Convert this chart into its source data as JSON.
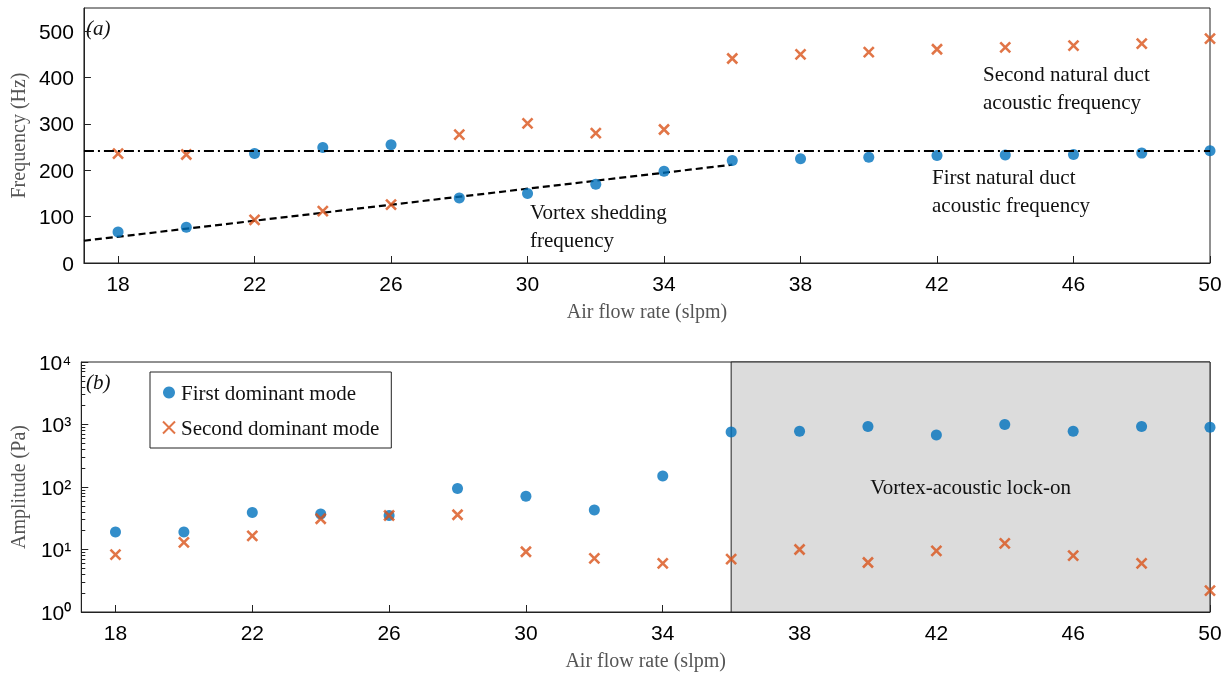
{
  "chart_data": [
    {
      "type": "scatter",
      "xlabel": "Air flow rate (slpm)",
      "ylabel": "Frequency (Hz)",
      "x": [
        18,
        20,
        22,
        24,
        26,
        28,
        30,
        32,
        34,
        36,
        38,
        40,
        42,
        44,
        46,
        48,
        50
      ],
      "xlim": [
        17,
        50
      ],
      "xticks": [
        18,
        22,
        26,
        30,
        34,
        38,
        42,
        46,
        50
      ],
      "ylim": [
        0,
        550
      ],
      "yticks": [
        0,
        100,
        200,
        300,
        400,
        500
      ],
      "grid": false,
      "legend": false,
      "series": [
        {
          "color": "#0072bd",
          "marker": "circle",
          "values": [
            67,
            77,
            236,
            249,
            255,
            140,
            150,
            170,
            198,
            221,
            225,
            228,
            232,
            233,
            234,
            237,
            242
          ]
        },
        {
          "color": "#d95319",
          "marker": "cross",
          "values": [
            236,
            234,
            93,
            112,
            126,
            277,
            301,
            280,
            288,
            441,
            450,
            455,
            461,
            465,
            469,
            473,
            484
          ]
        },
        {
          "type": "line",
          "color": "#000000",
          "marker": "none",
          "line_style": "dashed",
          "x": [
            17,
            36
          ],
          "values": [
            48,
            212
          ]
        }
      ],
      "ref_lines": [
        {
          "axis": "y",
          "value": 243,
          "color": "#000000",
          "line_style": "dashdot"
        }
      ],
      "annotations": [
        "(a)",
        "Vortex shedding\nfrequency",
        "First natural duct\nacoustic frequency",
        "Second natural duct\nacoustic frequency"
      ]
    },
    {
      "type": "scatter",
      "xlabel": "Air flow rate (slpm)",
      "ylabel": "Amplitude (Pa)",
      "x": [
        18,
        20,
        22,
        24,
        26,
        28,
        30,
        32,
        34,
        36,
        38,
        40,
        42,
        44,
        46,
        48,
        50
      ],
      "xlim": [
        17,
        50
      ],
      "xticks": [
        18,
        22,
        26,
        30,
        34,
        38,
        42,
        46,
        50
      ],
      "log": "y",
      "ylim": [
        1,
        10000
      ],
      "yticks": [
        {
          "value": 1,
          "label": "10⁰"
        },
        {
          "value": 10,
          "label": "10¹"
        },
        {
          "value": 100,
          "label": "10²"
        },
        {
          "value": 1000,
          "label": "10³"
        },
        {
          "value": 10000,
          "label": "10⁴"
        }
      ],
      "grid": false,
      "legend": "top left",
      "series": [
        {
          "name": "First dominant mode",
          "color": "#0072bd",
          "marker": "circle",
          "values": [
            19,
            19,
            39,
            37,
            35,
            95,
            71,
            43,
            150,
            760,
            780,
            930,
            680,
            1000,
            780,
            930,
            900
          ]
        },
        {
          "name": "Second dominant mode",
          "color": "#d95319",
          "marker": "cross",
          "values": [
            8.3,
            13,
            16.5,
            31,
            35,
            36,
            9.2,
            7.2,
            6,
            7,
            10,
            6.2,
            9.5,
            12.5,
            8,
            6,
            2.2
          ]
        }
      ],
      "bands": [
        {
          "axis": "x",
          "from": 36,
          "to": 50,
          "label": "Vortex-acoustic lock-on",
          "color": "#dcdcdc"
        }
      ],
      "annotations": [
        "(b)"
      ]
    }
  ]
}
